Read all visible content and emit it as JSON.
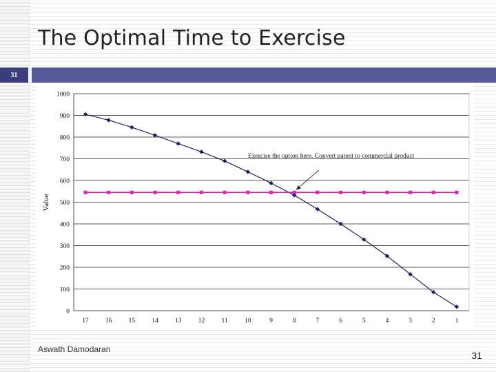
{
  "slide": {
    "title": "The Optimal Time to Exercise",
    "slide_number_badge": "31",
    "author": "Aswath Damodaran",
    "page_number": "31"
  },
  "colors": {
    "accent_bar": "#56599a",
    "badge": "#3b3e7c",
    "series_value": "#1a1f6e",
    "series_flat": "#e020b8"
  },
  "chart_data": {
    "type": "line",
    "ylabel": "Value",
    "xlabel": "",
    "ylim": [
      0,
      1000
    ],
    "yticks": [
      0,
      100,
      200,
      300,
      400,
      500,
      600,
      700,
      800,
      900,
      1000
    ],
    "categories": [
      "17",
      "16",
      "15",
      "14",
      "13",
      "12",
      "11",
      "10",
      "9",
      "8",
      "7",
      "6",
      "5",
      "4",
      "3",
      "2",
      "1"
    ],
    "series": [
      {
        "name": "",
        "values": [
          905,
          878,
          845,
          808,
          770,
          732,
          690,
          640,
          588,
          532,
          468,
          400,
          328,
          252,
          168,
          85,
          18
        ],
        "color": "#1a1f6e",
        "marker": "diamond"
      },
      {
        "name": "",
        "values": [
          545,
          545,
          545,
          545,
          545,
          545,
          545,
          545,
          545,
          545,
          545,
          545,
          545,
          545,
          545,
          545,
          545
        ],
        "color": "#e020b8",
        "marker": "square"
      }
    ],
    "grid": "horizontal",
    "annotation": {
      "text": "Exercise the option here. Convert patent to commercial product",
      "target_category": "8",
      "target_value": 545
    }
  }
}
